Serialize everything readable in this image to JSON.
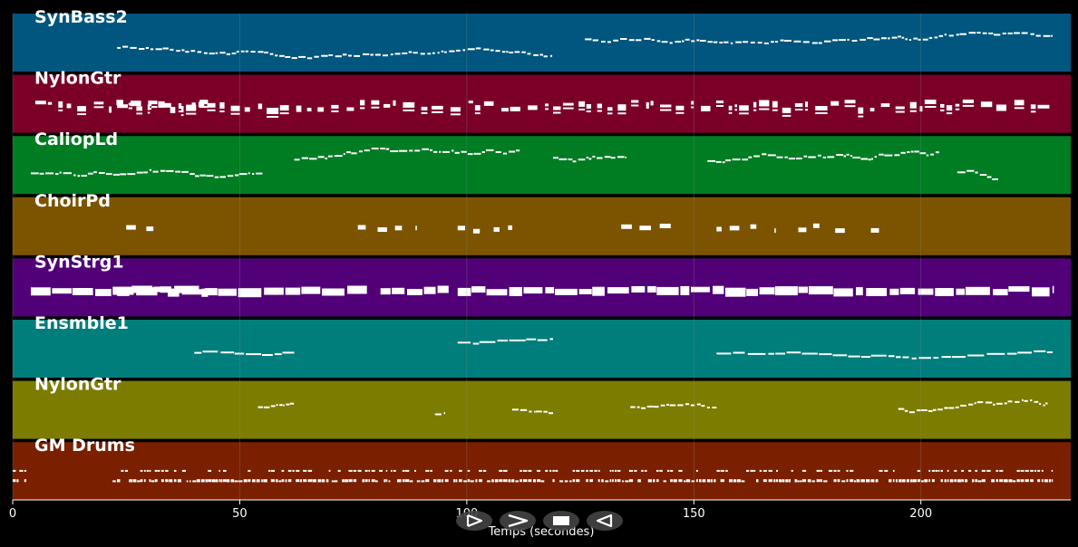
{
  "tracks": [
    {
      "name": "SynBass2",
      "color": "#00567e",
      "style": "bass"
    },
    {
      "name": "NylonGtr",
      "color": "#7a0028",
      "style": "chords"
    },
    {
      "name": "CaliopLd",
      "color": "#007c22",
      "style": "lead"
    },
    {
      "name": "ChoirPd",
      "color": "#7c5400",
      "style": "pad"
    },
    {
      "name": "SynStrg1",
      "color": "#520078",
      "style": "strings"
    },
    {
      "name": "Ensmble1",
      "color": "#007e7c",
      "style": "ensemble"
    },
    {
      "name": "NylonGtr",
      "color": "#7c7c00",
      "style": "guitar"
    },
    {
      "name": "GM Drums",
      "color": "#7a2000",
      "style": "drums"
    }
  ],
  "axis": {
    "title": "Temps (secondes)",
    "min": 0,
    "max": 233,
    "ticks": [
      0,
      50,
      100,
      150,
      200
    ]
  },
  "controls": [
    {
      "name": "play-from-start-button",
      "icon": "play-outline-icon"
    },
    {
      "name": "play-button",
      "icon": "chevron-right-icon"
    },
    {
      "name": "stop-button",
      "icon": "stop-square-icon"
    },
    {
      "name": "rewind-button",
      "icon": "reverse-triangle-icon"
    }
  ],
  "colors": {
    "background": "#000000",
    "gridline": "#8a8a8a",
    "note": "#ffffff"
  }
}
